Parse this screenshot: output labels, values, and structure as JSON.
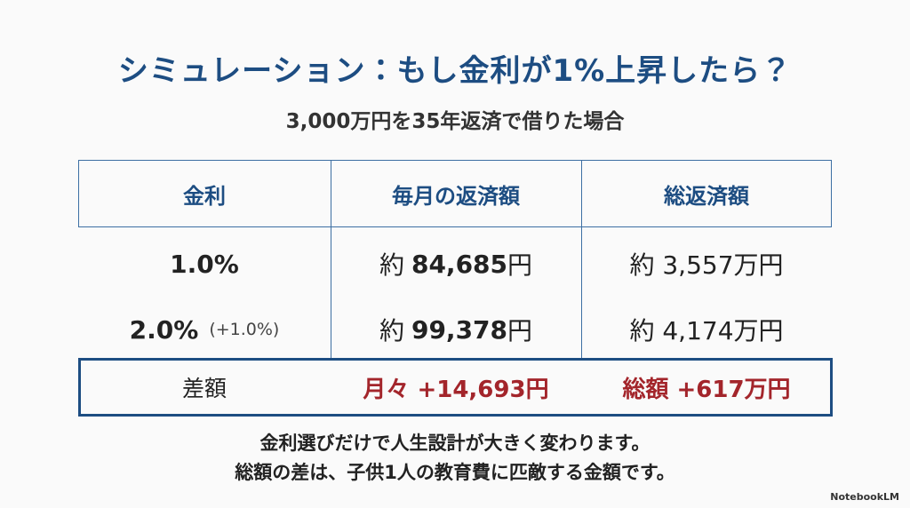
{
  "title": "シミュレーション：もし金利が1%上昇したら？",
  "subtitle": "3,000万円を35年返済で借りた場合",
  "table": {
    "headers": [
      "金利",
      "毎月の返済額",
      "総返済額"
    ],
    "rows": [
      [
        [
          "1.0%"
        ],
        [
          "約",
          "84,685",
          "円"
        ],
        [
          "約 3,557万円"
        ]
      ],
      [
        [
          "2.0%",
          "(+1.0%)"
        ],
        [
          "約",
          "99,378",
          "円"
        ],
        [
          "約 4,174万円"
        ]
      ],
      [
        [
          "差額"
        ],
        [
          "月々 +14,693円"
        ],
        [
          "総額 +617万円"
        ]
      ]
    ]
  },
  "footer": [
    "金利選びだけで人生設計が大きく変わります。",
    "総額の差は、子供1人の教育費に匹敵する金額です。"
  ],
  "badge": "NotebookLM"
}
